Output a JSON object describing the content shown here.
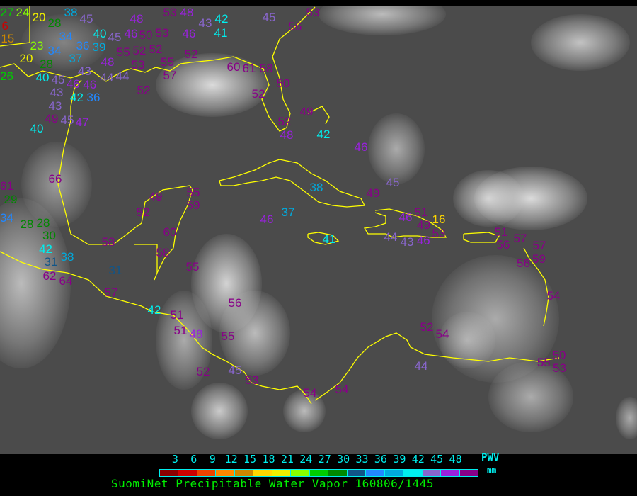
{
  "map": {
    "title": "SuomiNet Precipitable Water Vapor 160806/1445",
    "coastline_color": "#ffff00",
    "background": "grayscale infrared satellite imagery"
  },
  "legend": {
    "quantity": "PWV",
    "unit": "mm",
    "ticks": [
      "3",
      "6",
      "9",
      "12",
      "15",
      "18",
      "21",
      "24",
      "27",
      "30",
      "33",
      "36",
      "39",
      "42",
      "45",
      "48"
    ],
    "colors": [
      "#8b0000",
      "#cc0000",
      "#ee4400",
      "#ff8800",
      "#cc8800",
      "#ffd700",
      "#eeee00",
      "#88ff00",
      "#00cc00",
      "#008800",
      "#115588",
      "#2288ff",
      "#00aadd",
      "#00eeee",
      "#8866cc",
      "#9922dd",
      "#880088"
    ]
  },
  "stations": [
    27,
    24,
    20,
    28,
    6,
    15,
    23,
    34,
    34,
    36,
    39,
    37,
    43,
    20,
    28,
    26,
    40,
    45,
    46,
    43,
    42,
    46,
    44,
    44,
    43,
    49,
    45,
    47,
    40,
    36,
    48,
    45,
    46,
    50,
    55,
    52,
    52,
    53,
    53,
    52,
    53,
    48,
    43,
    46,
    38,
    45,
    48,
    40,
    42,
    41,
    55,
    52,
    57,
    45,
    53,
    56,
    60,
    61,
    58,
    50,
    52,
    49,
    52,
    48,
    42,
    46,
    45,
    49,
    38,
    37,
    41,
    46,
    51,
    49,
    16,
    44,
    43,
    46,
    53,
    51,
    56,
    57,
    57,
    59,
    56,
    66,
    61,
    29,
    34,
    28,
    28,
    30,
    42,
    31,
    38,
    62,
    64,
    58,
    31,
    49,
    52,
    55,
    59,
    60,
    58,
    55,
    46,
    57,
    42,
    51,
    51,
    48,
    56,
    55,
    52,
    45,
    53,
    54,
    54,
    52,
    54,
    44,
    54,
    50,
    55,
    53
  ]
}
